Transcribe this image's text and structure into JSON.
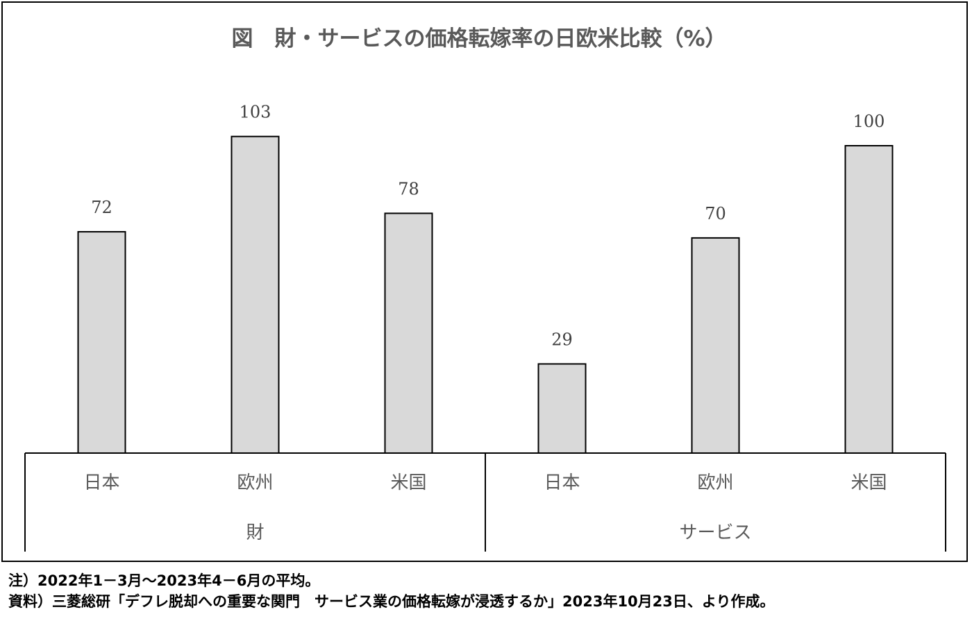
{
  "chart_data": {
    "type": "bar",
    "title": "図　財・サービスの価格転嫁率の日欧米比較（%）",
    "xlabel": "",
    "ylabel": "",
    "groups": [
      {
        "label": "財",
        "categories": [
          "日本",
          "欧州",
          "米国"
        ],
        "values": [
          72,
          103,
          78
        ]
      },
      {
        "label": "サービス",
        "categories": [
          "日本",
          "欧州",
          "米国"
        ],
        "values": [
          29,
          70,
          100
        ]
      }
    ],
    "ylim": [
      0,
      120
    ],
    "grid": false,
    "legend": "none",
    "bar_color": "#d9d9d9"
  },
  "notes": {
    "note": "注）2022年1－3月～2023年4－6月の平均。",
    "source": "資料）三菱総研「デフレ脱却への重要な関門　サービス業の価格転嫁が浸透するか」2023年10月23日、より作成。"
  }
}
